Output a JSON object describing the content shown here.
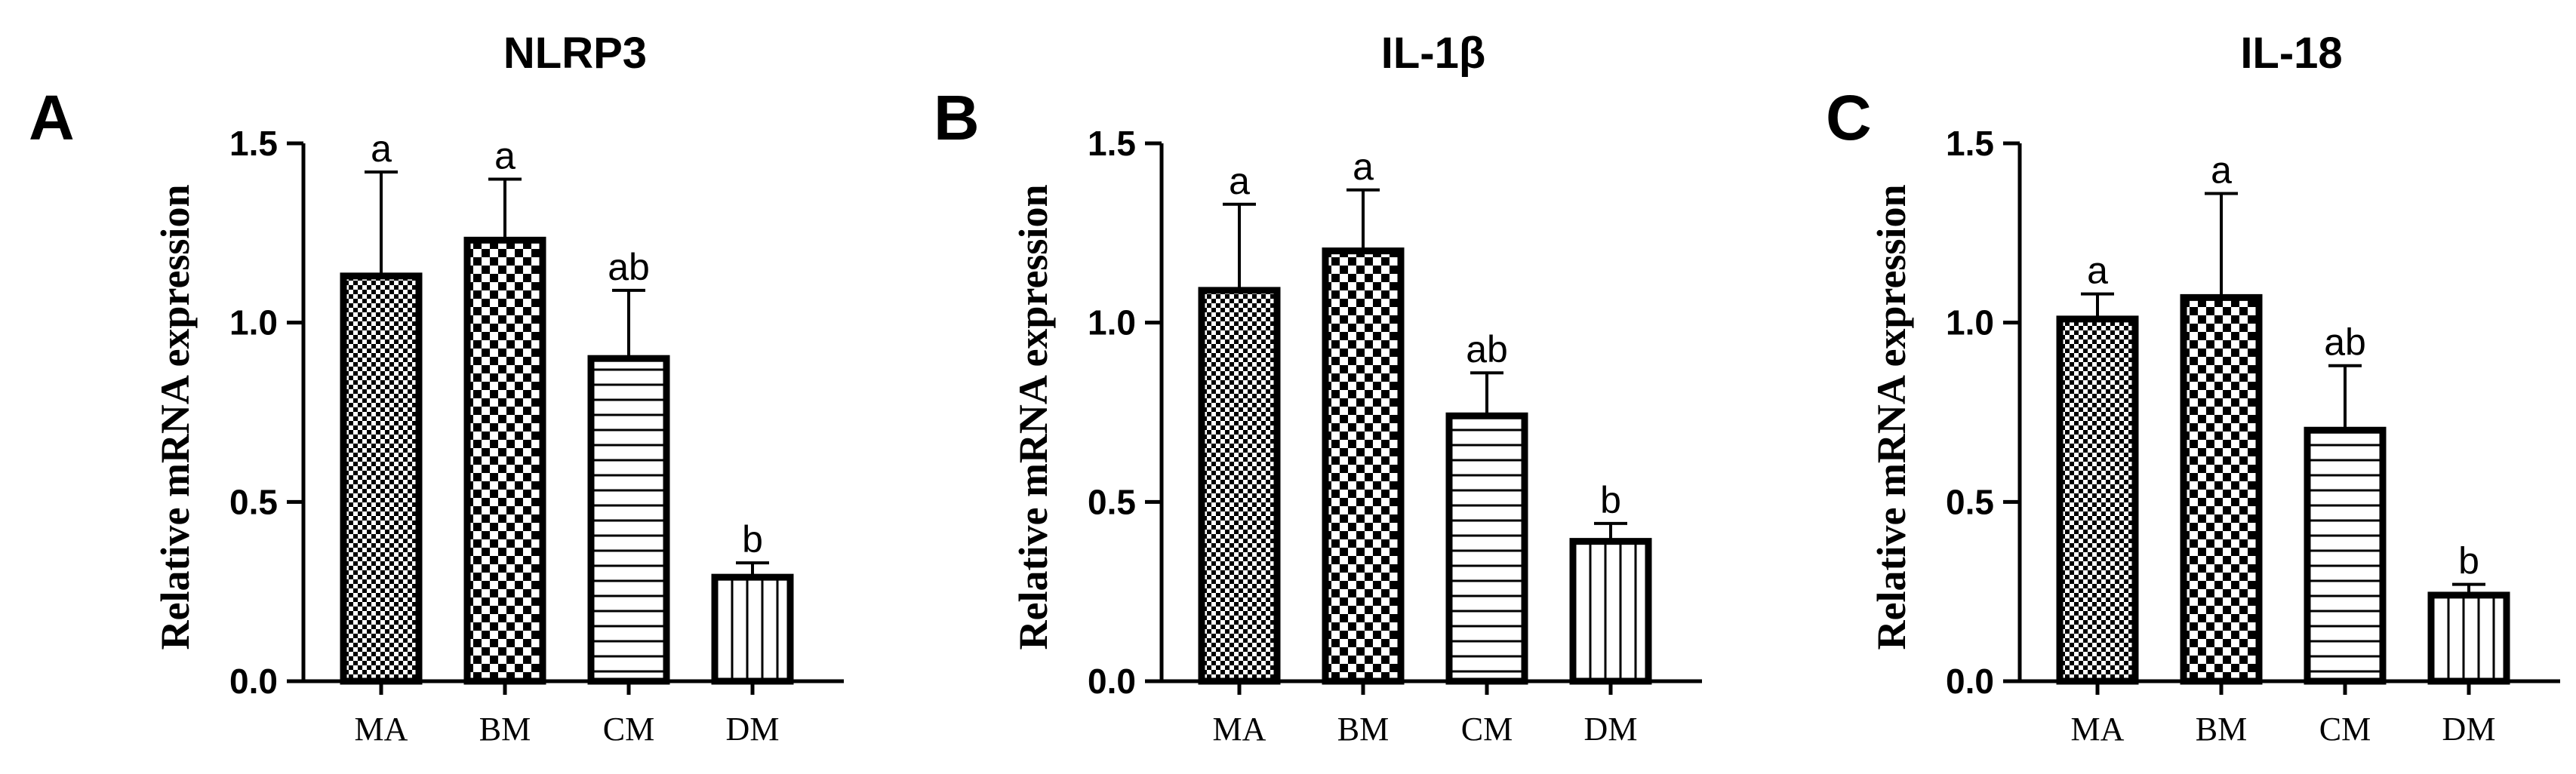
{
  "chart_data": [
    {
      "type": "bar",
      "panel_label": "A",
      "title": "NLRP3",
      "ylabel": "Relative mRNA expression",
      "xlabel": "",
      "ylim": [
        0,
        1.5
      ],
      "yticks": [
        "0.0",
        "0.5",
        "1.0",
        "1.5"
      ],
      "categories": [
        "MA",
        "BM",
        "CM",
        "DM"
      ],
      "values": [
        1.13,
        1.23,
        0.9,
        0.29
      ],
      "errors": [
        0.29,
        0.17,
        0.19,
        0.04
      ],
      "significance": [
        "a",
        "a",
        "ab",
        "b"
      ],
      "patterns": [
        "fine-checker",
        "checker",
        "horizontal-lines",
        "vertical-lines"
      ],
      "grid": false,
      "legend": "none"
    },
    {
      "type": "bar",
      "panel_label": "B",
      "title": "IL-1β",
      "ylabel": "Relative mRNA expression",
      "xlabel": "",
      "ylim": [
        0,
        1.5
      ],
      "yticks": [
        "0.0",
        "0.5",
        "1.0",
        "1.5"
      ],
      "categories": [
        "MA",
        "BM",
        "CM",
        "DM"
      ],
      "values": [
        1.09,
        1.2,
        0.74,
        0.39
      ],
      "errors": [
        0.24,
        0.17,
        0.12,
        0.05
      ],
      "significance": [
        "a",
        "a",
        "ab",
        "b"
      ],
      "patterns": [
        "fine-checker",
        "checker",
        "horizontal-lines",
        "vertical-lines"
      ],
      "grid": false,
      "legend": "none"
    },
    {
      "type": "bar",
      "panel_label": "C",
      "title": "IL-18",
      "ylabel": "Relative mRNA expression",
      "xlabel": "",
      "ylim": [
        0,
        1.5
      ],
      "yticks": [
        "0.0",
        "0.5",
        "1.0",
        "1.5"
      ],
      "categories": [
        "MA",
        "BM",
        "CM",
        "DM"
      ],
      "values": [
        1.01,
        1.07,
        0.7,
        0.24
      ],
      "errors": [
        0.07,
        0.29,
        0.18,
        0.03
      ],
      "significance": [
        "a",
        "a",
        "ab",
        "b"
      ],
      "patterns": [
        "fine-checker",
        "checker",
        "horizontal-lines",
        "vertical-lines"
      ],
      "grid": false,
      "legend": "none"
    }
  ]
}
